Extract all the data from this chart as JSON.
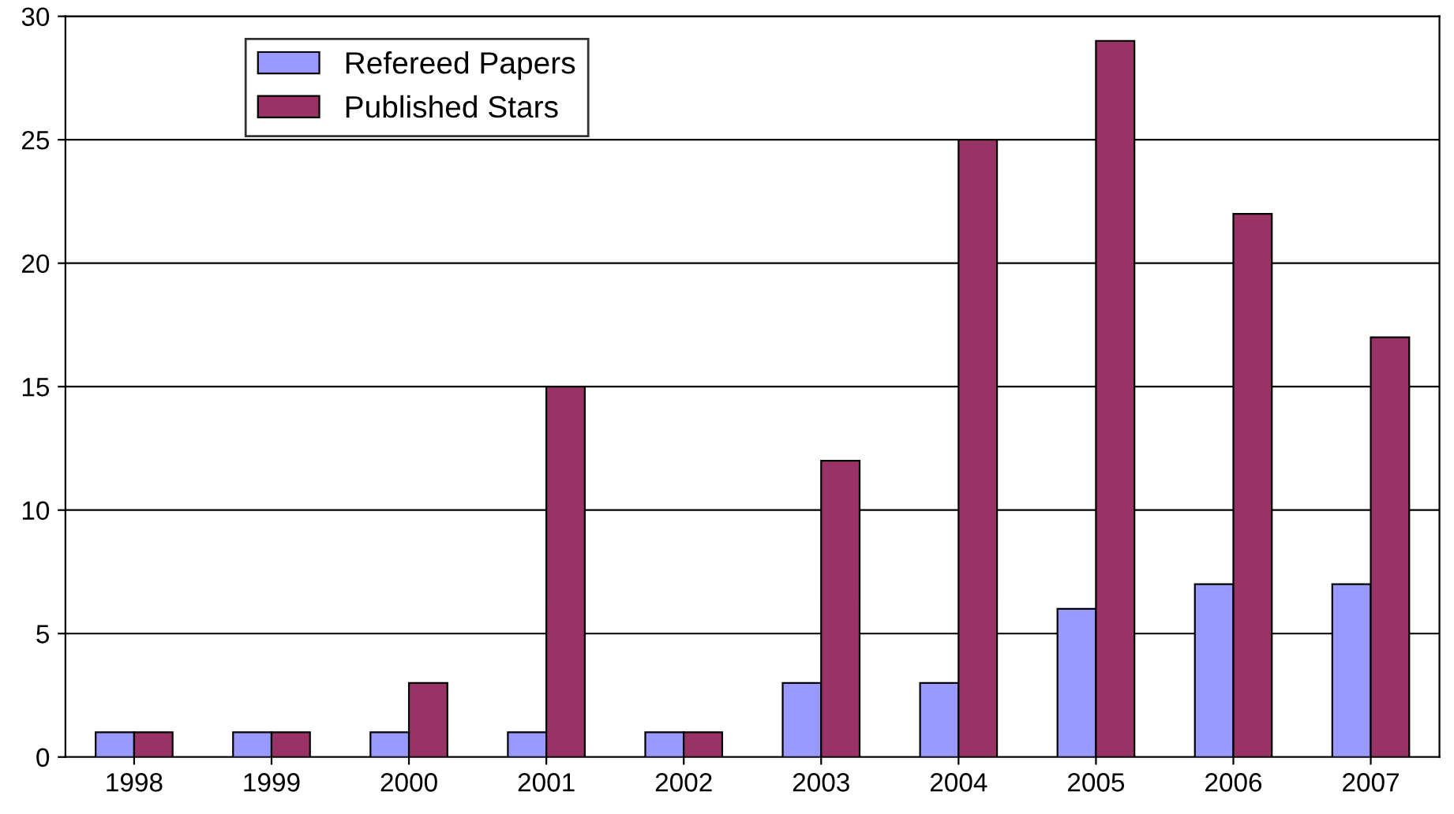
{
  "chart_data": {
    "type": "bar",
    "categories": [
      "1998",
      "1999",
      "2000",
      "2001",
      "2002",
      "2003",
      "2004",
      "2005",
      "2006",
      "2007"
    ],
    "series": [
      {
        "name": "Refereed Papers",
        "color": "#9999ff",
        "values": [
          1,
          1,
          1,
          1,
          1,
          3,
          3,
          6,
          7,
          7
        ]
      },
      {
        "name": "Published Stars",
        "color": "#993366",
        "values": [
          1,
          1,
          3,
          15,
          1,
          12,
          25,
          29,
          22,
          17
        ]
      }
    ],
    "ylim": [
      0,
      30
    ],
    "yticks": [
      0,
      5,
      10,
      15,
      20,
      25,
      30
    ],
    "grid": "y",
    "legend": "top left"
  }
}
